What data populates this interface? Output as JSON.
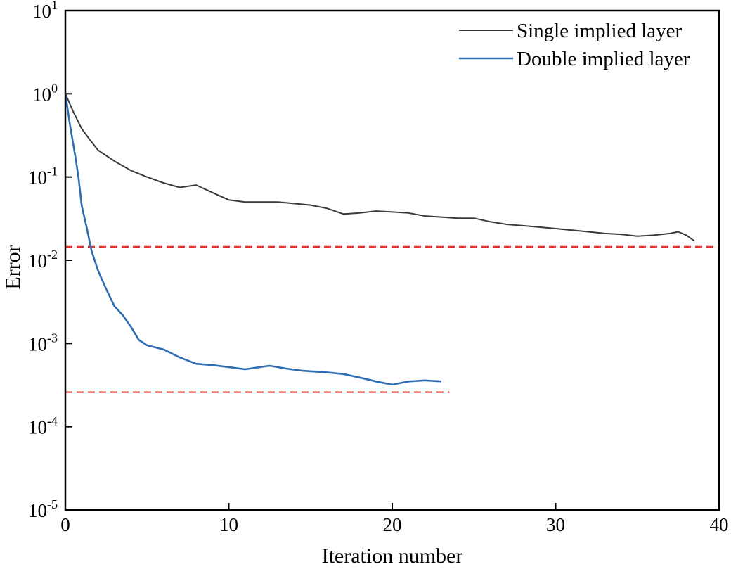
{
  "chart_data": {
    "type": "line",
    "title": "",
    "xlabel": "Iteration number",
    "ylabel": "Error",
    "xlim": [
      0,
      40
    ],
    "ylog_range": [
      -5,
      1
    ],
    "x_ticks": [
      0,
      10,
      20,
      30,
      40
    ],
    "x_tick_labels": [
      "0",
      "10",
      "20",
      "30",
      "40"
    ],
    "y_ticks": [
      {
        "base": "10",
        "exp": "1",
        "log": 1
      },
      {
        "base": "10",
        "exp": "0",
        "log": 0
      },
      {
        "base": "10",
        "exp": "-1",
        "log": -1
      },
      {
        "base": "10",
        "exp": "-2",
        "log": -2
      },
      {
        "base": "10",
        "exp": "-3",
        "log": -3
      },
      {
        "base": "10",
        "exp": "-4",
        "log": -4
      },
      {
        "base": "10",
        "exp": "-5",
        "log": -5
      }
    ],
    "legend_position": "top-right",
    "series": [
      {
        "name": "Single implied layer",
        "color": "#3a3a3a",
        "x": [
          0,
          0.5,
          1,
          1.5,
          2,
          3,
          4,
          5,
          6,
          7,
          8,
          9,
          10,
          11,
          12,
          13,
          14,
          15,
          16,
          17,
          18,
          19,
          20,
          21,
          22,
          23,
          24,
          25,
          26,
          27,
          28,
          29,
          30,
          31,
          32,
          33,
          34,
          35,
          36,
          37,
          37.5,
          38,
          38.5
        ],
        "y": [
          1.0,
          0.6,
          0.38,
          0.28,
          0.21,
          0.155,
          0.12,
          0.1,
          0.085,
          0.075,
          0.08,
          0.065,
          0.053,
          0.05,
          0.05,
          0.05,
          0.048,
          0.046,
          0.042,
          0.036,
          0.037,
          0.039,
          0.038,
          0.037,
          0.034,
          0.033,
          0.032,
          0.032,
          0.029,
          0.027,
          0.026,
          0.025,
          0.024,
          0.023,
          0.022,
          0.021,
          0.0205,
          0.0195,
          0.02,
          0.021,
          0.022,
          0.02,
          0.017
        ]
      },
      {
        "name": "Double implied layer",
        "color": "#2e6db4",
        "x": [
          0,
          0.3,
          0.6,
          0.8,
          1.0,
          1.3,
          1.6,
          2.0,
          2.5,
          3.0,
          3.5,
          4.0,
          4.5,
          5.0,
          6.0,
          7.0,
          8.0,
          9.0,
          10.0,
          11.0,
          12.5,
          13.5,
          14.5,
          16.0,
          17.0,
          18.0,
          19.0,
          20.0,
          21.0,
          22.0,
          23.0
        ],
        "y": [
          1.0,
          0.4,
          0.18,
          0.1,
          0.045,
          0.025,
          0.013,
          0.0075,
          0.0045,
          0.0028,
          0.0022,
          0.0016,
          0.0011,
          0.00095,
          0.00085,
          0.00068,
          0.00057,
          0.00055,
          0.00052,
          0.00049,
          0.00054,
          0.0005,
          0.00047,
          0.00045,
          0.00043,
          0.00039,
          0.00035,
          0.00032,
          0.00035,
          0.00036,
          0.00035
        ]
      }
    ],
    "reference_lines": [
      {
        "y": 0.0145,
        "x_range": [
          0,
          40
        ],
        "color": "#e03030",
        "style": "dashed"
      },
      {
        "y": 0.00026,
        "x_range": [
          0,
          23.5
        ],
        "color": "#e03030",
        "style": "dashed"
      }
    ]
  }
}
